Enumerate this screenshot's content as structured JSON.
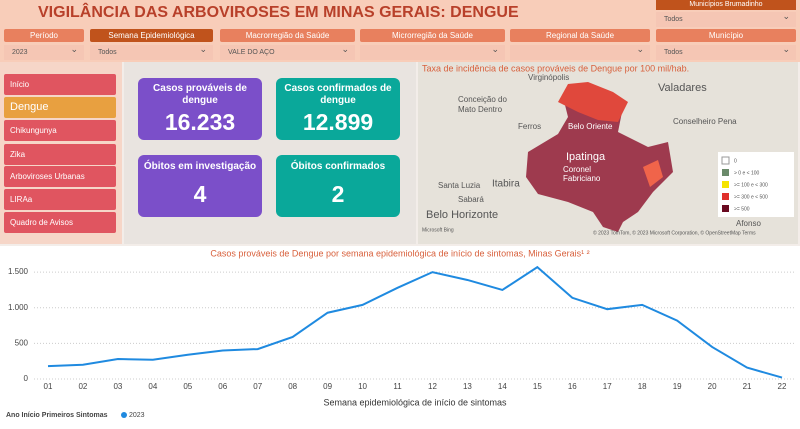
{
  "header": {
    "title": "VIGILÂNCIA DAS ARBOVIROSES EM MINAS GERAIS:  DENGUE",
    "municipio_box": {
      "label": "Municípios Brumadinho",
      "value": "Todos"
    }
  },
  "filters": [
    {
      "label": "Período",
      "value": "2023"
    },
    {
      "label": "Semana Epidemiológica",
      "value": "Todos"
    },
    {
      "label": "Macrorregião da Saúde",
      "value": "VALE DO AÇO"
    },
    {
      "label": "Microrregião da Saúde"
    },
    {
      "label": "Regional da Saúde"
    },
    {
      "label": "Município",
      "value": "Todos"
    }
  ],
  "nav": [
    "Início",
    "Dengue",
    "Chikungunya",
    "Zika",
    "Arboviroses Urbanas",
    "LIRAa",
    "Quadro de Avisos"
  ],
  "cards": [
    {
      "label": "Casos prováveis de dengue",
      "value": "16.233"
    },
    {
      "label": "Casos confirmados de dengue",
      "value": "12.899"
    },
    {
      "label": "Óbitos em investigação",
      "value": "4"
    },
    {
      "label": "Óbitos confirmados",
      "value": "2"
    }
  ],
  "map": {
    "title": "Taxa de incidência de casos prováveis de Dengue por 100 mil/hab.",
    "places": [
      "Virginópolis",
      "Valadares",
      "Conceição do",
      "Mato Dentro",
      "Ferros",
      "Belo Oriente",
      "Conselheiro Pena",
      "Ipatinga",
      "Coronel",
      "Fabriciano",
      "Santa Luzia",
      "Itabira",
      "Sabará",
      "Belo Horizonte",
      "Afonso"
    ],
    "legend": [
      "0",
      "> 0 e < 100",
      ">= 100 e < 300",
      ">= 300 e < 500",
      ">= 500"
    ],
    "credit": "© 2023 TomTom, © 2023 Microsoft Corporation, © OpenStreetMap Terms",
    "brand": "Microsoft Bing"
  },
  "chart_data": {
    "type": "line",
    "title": "Casos prováveis de Dengue por semana epidemiológica de início de sintomas, Minas Gerais¹ ²",
    "x_label": "Semana epidemiológica de início de sintomas",
    "legend_title": "Ano Início Primeiros Sintomas",
    "categories": [
      "01",
      "02",
      "03",
      "04",
      "05",
      "06",
      "07",
      "08",
      "09",
      "10",
      "11",
      "12",
      "13",
      "14",
      "15",
      "16",
      "17",
      "18",
      "19",
      "20",
      "21",
      "22"
    ],
    "series": [
      {
        "name": "2023",
        "color": "#1f8ae0",
        "values": [
          180,
          200,
          280,
          270,
          340,
          400,
          420,
          590,
          930,
          1040,
          1280,
          1500,
          1390,
          1250,
          1570,
          1140,
          980,
          1040,
          820,
          450,
          160,
          20
        ]
      }
    ],
    "ylim": [
      0,
      1600
    ],
    "yticks": [
      0,
      500,
      {
        "value": 1000,
        "label": "1.000"
      },
      {
        "value": 1500,
        "label": "1.500"
      }
    ],
    "grid": true
  }
}
